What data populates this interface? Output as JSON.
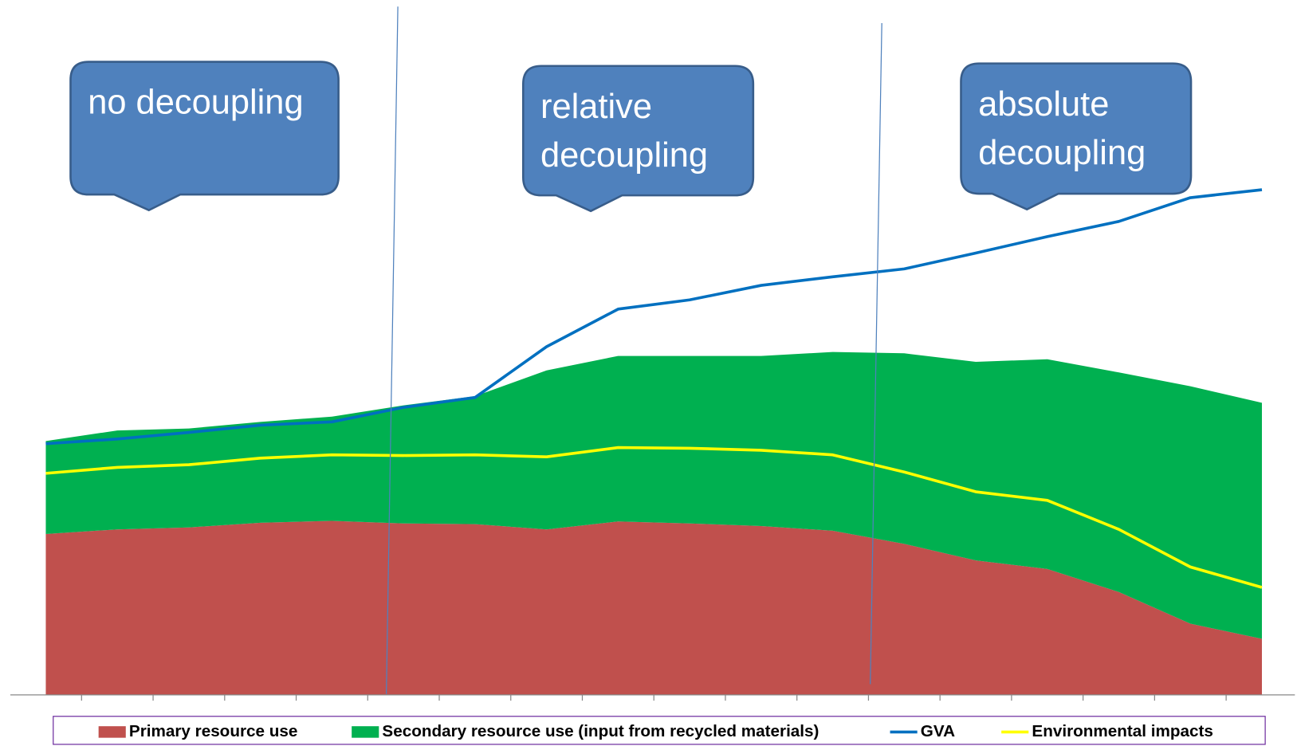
{
  "chart_data": {
    "type": "stacked-area-line",
    "categories": [
      null,
      null,
      null,
      null,
      null,
      null,
      null,
      null,
      null,
      null,
      null,
      null,
      null,
      null,
      null,
      null,
      null,
      null
    ],
    "ylim": [
      0,
      100
    ],
    "series": [
      {
        "name": "Primary resource use",
        "color": "#c0504d",
        "kind": "area",
        "values": [
          24.4,
          25.1,
          25.4,
          26.1,
          26.4,
          26.0,
          25.9,
          25.1,
          26.3,
          26.0,
          25.6,
          24.9,
          22.9,
          20.4,
          19.1,
          15.6,
          10.8,
          8.5
        ]
      },
      {
        "name": "Secondary resource use (input from recycled materials)",
        "color": "#00b050",
        "kind": "area",
        "values": [
          14.1,
          15.0,
          15.0,
          15.3,
          15.8,
          17.9,
          19.4,
          24.1,
          25.1,
          25.4,
          25.8,
          27.1,
          28.9,
          30.1,
          31.8,
          33.3,
          36.0,
          35.8
        ]
      },
      {
        "name": "GVA",
        "color": "#0070c0",
        "kind": "line",
        "values": [
          38.1,
          38.8,
          39.8,
          40.9,
          41.4,
          43.6,
          45.1,
          52.8,
          58.5,
          59.9,
          62.1,
          63.4,
          64.6,
          67.0,
          69.5,
          71.8,
          75.4,
          76.6
        ]
      },
      {
        "name": "Environmental impacts",
        "color": "#ffff00",
        "kind": "line",
        "values": [
          33.6,
          34.5,
          34.9,
          35.9,
          36.4,
          36.3,
          36.4,
          36.1,
          37.5,
          37.4,
          37.1,
          36.4,
          33.8,
          30.8,
          29.5,
          25.1,
          19.4,
          16.3
        ]
      }
    ],
    "annotations": [
      [
        "no decoupling"
      ],
      [
        "relative",
        "decoupling"
      ],
      [
        "absolute",
        "decoupling"
      ]
    ]
  }
}
